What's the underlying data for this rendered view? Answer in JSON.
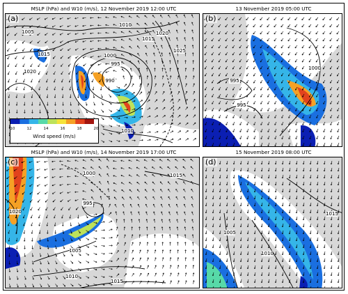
{
  "panels": [
    {
      "label": "(a)",
      "title": "MSLP (hPa) and W10 (m/s), 12 November 2019 12:00 UTC",
      "isobars": [
        "1005",
        "1010",
        "1015",
        "1020",
        "1025",
        "1020",
        "1015",
        "1000",
        "995",
        "990",
        "1010"
      ]
    },
    {
      "label": "(b)",
      "title": "13 November 2019 05:00 UTC",
      "isobars": [
        "995",
        "995",
        "1000"
      ]
    },
    {
      "label": "(c)",
      "title": "MSLP (hPa) and W10 (m/s), 14 November 2019 17:00 UTC",
      "isobars": [
        "1000",
        "995",
        "1005",
        "1010",
        "1015",
        "1015",
        "1020"
      ]
    },
    {
      "label": "(d)",
      "title": "15 November 2019 08:00 UTC",
      "isobars": [
        "1005",
        "1010",
        "1015"
      ]
    }
  ],
  "colorbar": {
    "title": "Wind speed (m/s)",
    "ticks": [
      "10",
      "12",
      "14",
      "16",
      "18",
      "20"
    ],
    "colors": [
      "#0b1fb3",
      "#1a6fe0",
      "#35b5e8",
      "#57d9a8",
      "#bde25a",
      "#f5e33a",
      "#f5a125",
      "#e2421d",
      "#a3150f"
    ]
  },
  "colors": {
    "land": "#d7d7d7",
    "sea": "#ffffff",
    "contour": "#000000"
  }
}
